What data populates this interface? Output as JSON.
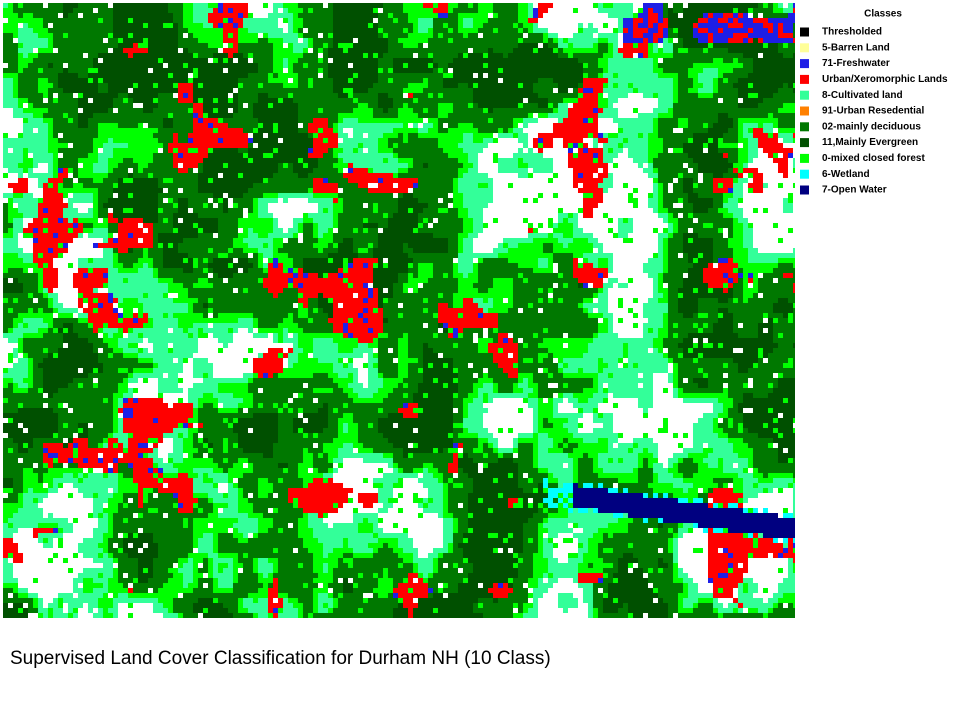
{
  "legend": {
    "title": "Classes",
    "items": [
      {
        "label": "Thresholded",
        "color": "#000000"
      },
      {
        "label": "5-Barren Land",
        "color": "#ffff99"
      },
      {
        "label": "71-Freshwater",
        "color": "#1e1ee6"
      },
      {
        "label": "Urban/Xeromorphic Lands",
        "color": "#ff0000"
      },
      {
        "label": "8-Cultivated land",
        "color": "#33ff99"
      },
      {
        "label": "91-Urban Resedential",
        "color": "#ff8000"
      },
      {
        "label": "02-mainly deciduous",
        "color": "#007800"
      },
      {
        "label": "11,Mainly Evergreen",
        "color": "#005000"
      },
      {
        "label": "0-mixed closed forest",
        "color": "#00ff00"
      },
      {
        "label": "6-Wetland",
        "color": "#00ffff"
      },
      {
        "label": "7-Open Water",
        "color": "#000080"
      }
    ]
  },
  "caption": "Supervised Land Cover Classification for Durham NH (10 Class)"
}
